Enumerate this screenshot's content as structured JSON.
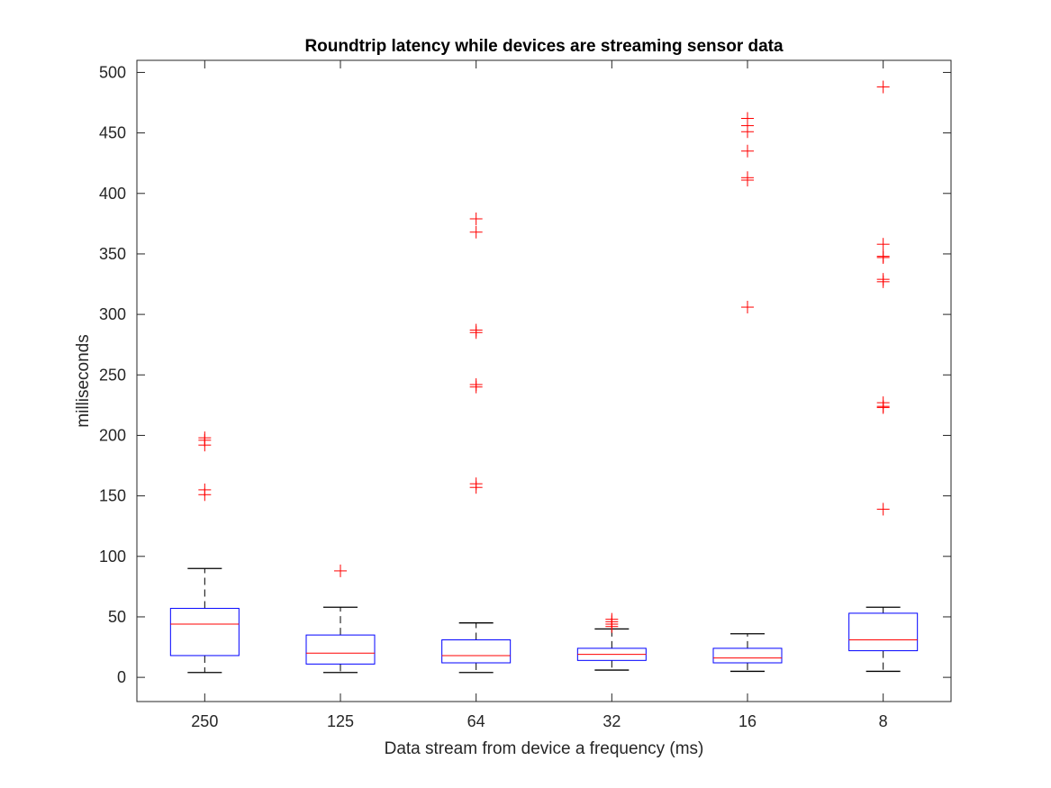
{
  "chart_data": {
    "type": "box",
    "title": "Roundtrip latency while devices are streaming sensor data",
    "xlabel": "Data stream from device a frequency (ms)",
    "ylabel": "milliseconds",
    "ylim": [
      -20,
      510
    ],
    "yticks": [
      0,
      50,
      100,
      150,
      200,
      250,
      300,
      350,
      400,
      450,
      500
    ],
    "grid": false,
    "colors": {
      "box": "#0000ff",
      "median": "#ff0000",
      "whisker": "#000000",
      "outlier": "#ff0000"
    },
    "categories": [
      "250",
      "125",
      "64",
      "32",
      "16",
      "8"
    ],
    "boxes": [
      {
        "category": "250",
        "whisker_low": 4,
        "q1": 18,
        "median": 44,
        "q3": 57,
        "whisker_high": 90,
        "outliers": [
          192,
          196,
          198,
          151,
          155
        ]
      },
      {
        "category": "125",
        "whisker_low": 4,
        "q1": 11,
        "median": 20,
        "q3": 35,
        "whisker_high": 58,
        "outliers": [
          88
        ]
      },
      {
        "category": "64",
        "whisker_low": 4,
        "q1": 12,
        "median": 18,
        "q3": 31,
        "whisker_high": 45,
        "outliers": [
          379,
          368,
          287,
          285,
          242,
          240,
          160,
          157
        ]
      },
      {
        "category": "32",
        "whisker_low": 6,
        "q1": 14,
        "median": 19,
        "q3": 24,
        "whisker_high": 40,
        "outliers": [
          42,
          44,
          46,
          48
        ]
      },
      {
        "category": "16",
        "whisker_low": 5,
        "q1": 12,
        "median": 16,
        "q3": 24,
        "whisker_high": 36,
        "outliers": [
          462,
          456,
          451,
          435,
          413,
          411,
          306
        ]
      },
      {
        "category": "8",
        "whisker_low": 5,
        "q1": 22,
        "median": 31,
        "q3": 53,
        "whisker_high": 58,
        "outliers": [
          488,
          358,
          348,
          347,
          329,
          327,
          227,
          224,
          223,
          139
        ]
      }
    ]
  }
}
